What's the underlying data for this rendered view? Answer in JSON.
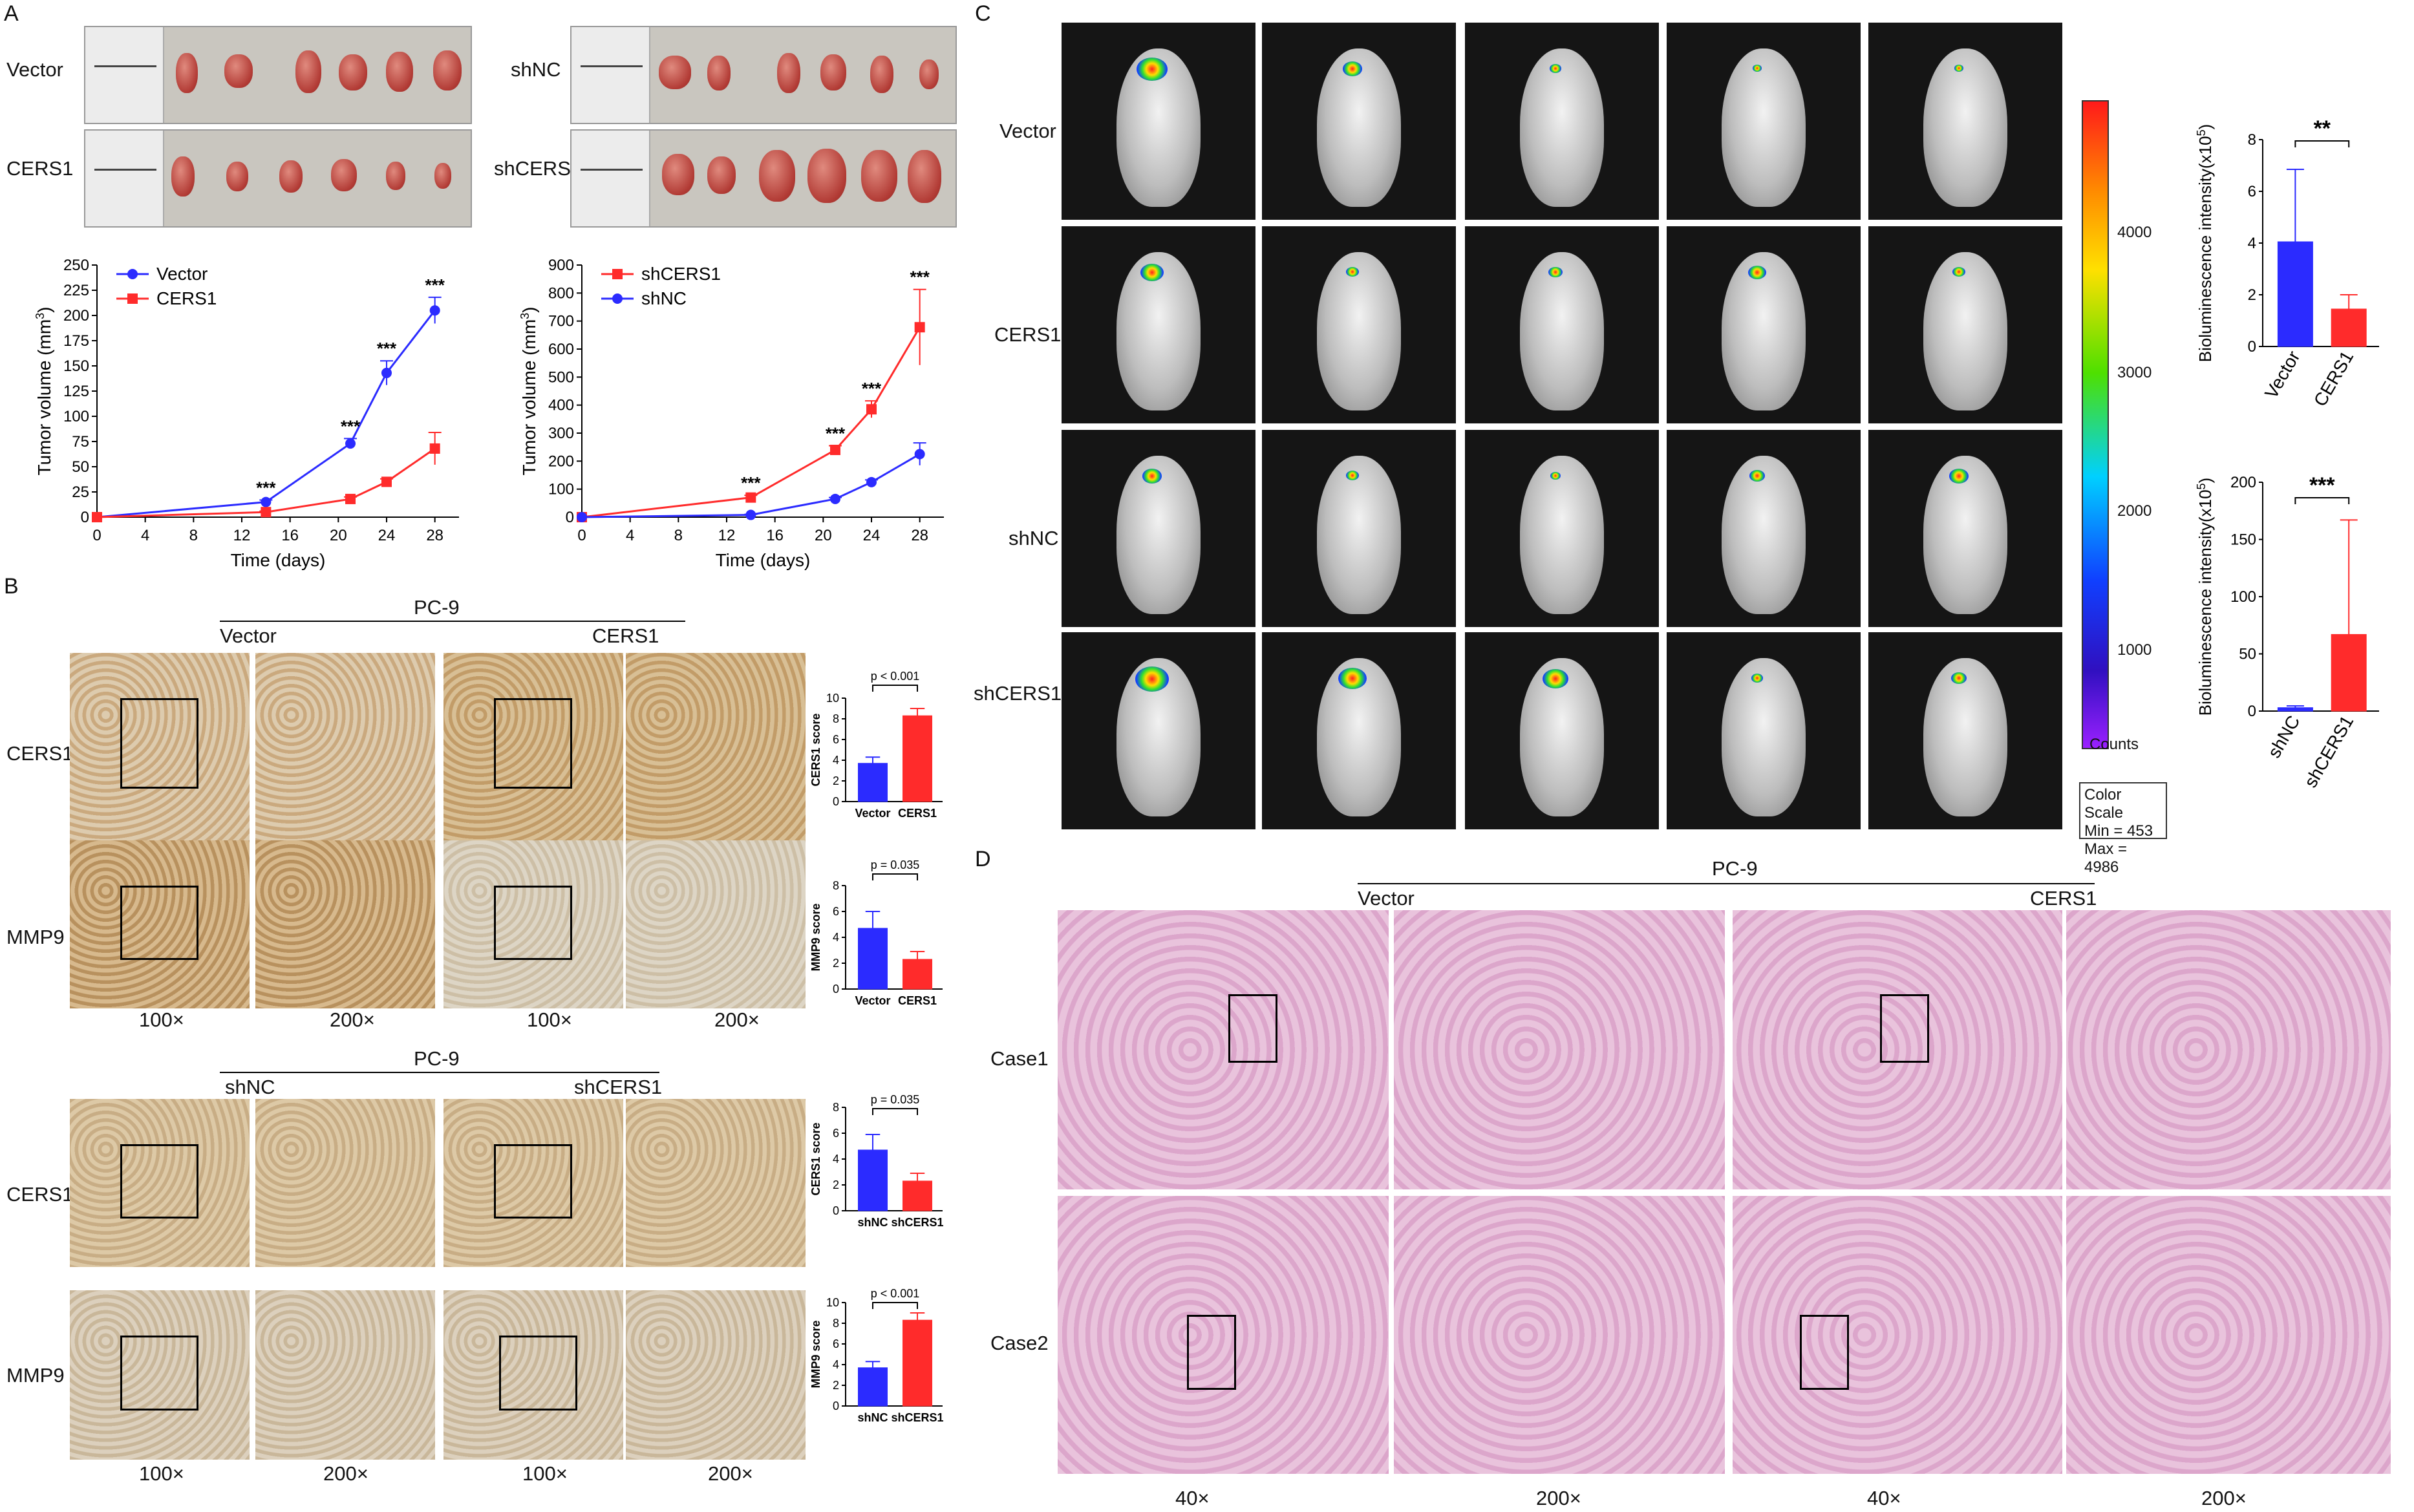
{
  "panels": {
    "A": "A",
    "B": "B",
    "C": "C",
    "D": "D"
  },
  "A": {
    "photo_rows_left": [
      "Vector",
      "CERS1"
    ],
    "photo_rows_right": [
      "shNC",
      "shCERS1"
    ],
    "chart_left": {
      "type": "line",
      "ylabel": "Tumor volume (mm",
      "ylabel_sup": "3",
      "ylabel_end": ")",
      "xlabel": "Time (days)",
      "x": [
        0,
        4,
        8,
        12,
        16,
        20,
        24,
        28
      ],
      "yticks": [
        0,
        25,
        50,
        75,
        100,
        125,
        150,
        175,
        200,
        225,
        250
      ],
      "series": [
        {
          "name": "Vector",
          "color": "#2b2bff",
          "x": [
            0,
            14,
            21,
            24,
            28
          ],
          "y": [
            0,
            15,
            73,
            143,
            205
          ],
          "err": [
            0,
            2,
            5,
            12,
            13
          ]
        },
        {
          "name": "CERS1",
          "color": "#ff2b2b",
          "x": [
            0,
            14,
            21,
            24,
            28
          ],
          "y": [
            0,
            5,
            18,
            35,
            68
          ],
          "err": [
            0,
            1,
            2,
            3,
            16
          ]
        }
      ],
      "stars": [
        {
          "x": 14,
          "label": "***"
        },
        {
          "x": 21,
          "label": "***"
        },
        {
          "x": 24,
          "label": "***"
        },
        {
          "x": 28,
          "label": "***"
        }
      ]
    },
    "chart_right": {
      "type": "line",
      "ylabel": "Tumor volume (mm",
      "ylabel_sup": "3",
      "ylabel_end": ")",
      "xlabel": "Time (days)",
      "x": [
        0,
        4,
        8,
        12,
        16,
        20,
        24,
        28
      ],
      "yticks": [
        0,
        100,
        200,
        300,
        400,
        500,
        600,
        700,
        800,
        900
      ],
      "series": [
        {
          "name": "shCERS1",
          "color": "#ff2b2b",
          "x": [
            0,
            14,
            21,
            24,
            28
          ],
          "y": [
            0,
            70,
            240,
            385,
            678
          ],
          "err": [
            0,
            8,
            15,
            30,
            135
          ]
        },
        {
          "name": "shNC",
          "color": "#2b2bff",
          "x": [
            0,
            14,
            21,
            24,
            28
          ],
          "y": [
            0,
            8,
            65,
            125,
            225
          ],
          "err": [
            0,
            2,
            5,
            8,
            40
          ]
        }
      ],
      "stars": [
        {
          "x": 14,
          "label": "***"
        },
        {
          "x": 21,
          "label": "***"
        },
        {
          "x": 24,
          "label": "***"
        },
        {
          "x": 28,
          "label": "***"
        }
      ]
    }
  },
  "B": {
    "top": {
      "cell_line": "PC-9",
      "group1": "Vector",
      "group2": "CERS1",
      "rows": [
        "CERS1",
        "MMP9"
      ]
    },
    "bottom": {
      "cell_line": "PC-9",
      "group1": "shNC",
      "group2": "shCERS1",
      "rows": [
        "CERS1",
        "MMP9"
      ]
    },
    "mag_labels": [
      "100×",
      "200×",
      "100×",
      "200×"
    ],
    "bars": [
      {
        "ylabel": "CERS1 score",
        "categories": [
          "Vector",
          "CERS1"
        ],
        "values": [
          3.7,
          8.3
        ],
        "err": [
          0.6,
          0.7
        ],
        "ymax": 10,
        "yticks": [
          0,
          2,
          4,
          6,
          8,
          10
        ],
        "p": "p < 0.001"
      },
      {
        "ylabel": "MMP9 score",
        "categories": [
          "Vector",
          "CERS1"
        ],
        "values": [
          4.7,
          2.3
        ],
        "err": [
          1.3,
          0.6
        ],
        "ymax": 8,
        "yticks": [
          0,
          2,
          4,
          6,
          8
        ],
        "p": "p = 0.035"
      },
      {
        "ylabel": "CERS1 score",
        "categories": [
          "shNC",
          "shCERS1"
        ],
        "values": [
          4.7,
          2.3
        ],
        "err": [
          1.2,
          0.6
        ],
        "ymax": 8,
        "yticks": [
          0,
          2,
          4,
          6,
          8
        ],
        "p": "p = 0.035"
      },
      {
        "ylabel": "MMP9 score",
        "categories": [
          "shNC",
          "shCERS1"
        ],
        "values": [
          3.7,
          8.3
        ],
        "err": [
          0.6,
          0.7
        ],
        "ymax": 10,
        "yticks": [
          0,
          2,
          4,
          6,
          8,
          10
        ],
        "p": "p < 0.001"
      }
    ]
  },
  "C": {
    "rows": [
      "Vector",
      "CERS1",
      "shNC",
      "shCERS1"
    ],
    "colorbar": {
      "ticks": [
        "4000",
        "3000",
        "2000",
        "1000"
      ],
      "unit": "Counts",
      "scale_title": "Color Scale",
      "min": "Min = 453",
      "max": "Max = 4986"
    },
    "bars": [
      {
        "ylabel": "Bioluminescence intensity(x10",
        "ylabel_sup": "5",
        "ylabel_end": ")",
        "categories": [
          "Vector",
          "CERS1"
        ],
        "values": [
          4.05,
          1.45
        ],
        "err": [
          2.8,
          0.55
        ],
        "ymax": 8,
        "yticks": [
          0,
          2,
          4,
          6,
          8
        ],
        "sig": "**"
      },
      {
        "ylabel": "Bioluminescence intensity(x10",
        "ylabel_sup": "5",
        "ylabel_end": ")",
        "categories": [
          "shNC",
          "shCERS1"
        ],
        "values": [
          3,
          67
        ],
        "err": [
          1.5,
          100
        ],
        "ymax": 200,
        "yticks": [
          0,
          50,
          100,
          150,
          200
        ],
        "sig": "***"
      }
    ]
  },
  "D": {
    "cell_line": "PC-9",
    "group1": "Vector",
    "group2": "CERS1",
    "rows": [
      "Case1",
      "Case2"
    ],
    "mag_labels": [
      "40×",
      "200×",
      "40×",
      "200×"
    ]
  },
  "colors": {
    "blue": "#2b2bff",
    "red": "#ff2b2b"
  }
}
